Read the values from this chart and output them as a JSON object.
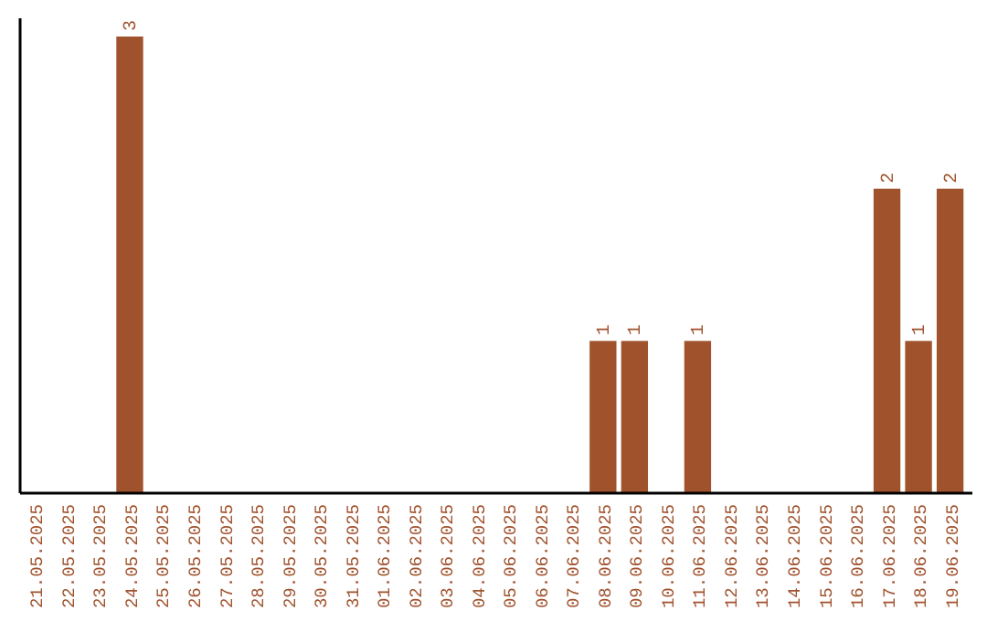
{
  "chart_data": {
    "type": "bar",
    "categories": [
      "21.05.2025",
      "22.05.2025",
      "23.05.2025",
      "24.05.2025",
      "25.05.2025",
      "26.05.2025",
      "27.05.2025",
      "28.05.2025",
      "29.05.2025",
      "30.05.2025",
      "31.05.2025",
      "01.06.2025",
      "02.06.2025",
      "03.06.2025",
      "04.06.2025",
      "05.06.2025",
      "06.06.2025",
      "07.06.2025",
      "08.06.2025",
      "09.06.2025",
      "10.06.2025",
      "11.06.2025",
      "12.06.2025",
      "13.06.2025",
      "14.06.2025",
      "15.06.2025",
      "16.06.2025",
      "17.06.2025",
      "18.06.2025",
      "19.06.2025"
    ],
    "values": [
      0,
      0,
      0,
      3,
      0,
      0,
      0,
      0,
      0,
      0,
      0,
      0,
      0,
      0,
      0,
      0,
      0,
      0,
      1,
      1,
      0,
      1,
      0,
      0,
      0,
      0,
      0,
      2,
      1,
      2
    ],
    "value_labels": [
      null,
      null,
      null,
      "3",
      null,
      null,
      null,
      null,
      null,
      null,
      null,
      null,
      null,
      null,
      null,
      null,
      null,
      null,
      "1",
      "1",
      null,
      "1",
      null,
      null,
      null,
      null,
      null,
      "2",
      "1",
      "2"
    ],
    "color": "#a0522d"
  }
}
